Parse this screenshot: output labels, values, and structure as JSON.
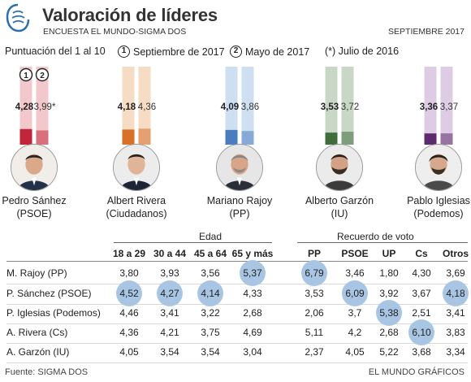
{
  "header": {
    "title": "Valoración de líderes",
    "subtitle": "ENCUESTA EL MUNDO-SIGMA DOS",
    "date": "SEPTIEMBRE 2017"
  },
  "legend": {
    "scale": "Puntuación del 1 al 10",
    "series1_num": "1",
    "series1_label": "Septiembre de 2017",
    "series2_num": "2",
    "series2_label": "Mayo de 2017",
    "note": "(*) Julio de 2016"
  },
  "chart_data": {
    "type": "bar",
    "categories": [
      "Pedro Sánhez (PSOE)",
      "Albert Rivera (Ciudadanos)",
      "Mariano Rajoy (PP)",
      "Alberto Garzón (IU)",
      "Pablo Iglesias (Podemos)"
    ],
    "series": [
      {
        "name": "Septiembre de 2017",
        "values": [
          4.28,
          4.18,
          4.09,
          3.53,
          3.36
        ]
      },
      {
        "name": "Mayo de 2017",
        "values": [
          3.99,
          4.36,
          3.86,
          3.72,
          3.37
        ]
      }
    ],
    "value_labels_s1": [
      "4,28",
      "4,18",
      "4,09",
      "3,53",
      "3,36"
    ],
    "value_labels_s2": [
      "3,99*",
      "4,36",
      "3,86",
      "3,72",
      "3,37"
    ],
    "ylim": [
      1,
      10
    ],
    "colors": [
      "#c2243a",
      "#d9702a",
      "#4a7cc0",
      "#3f6e3c",
      "#5e2a6e"
    ],
    "light_colors": [
      "#f3c8cd",
      "#f6dcc4",
      "#cfdff2",
      "#c9d8c6",
      "#ddcce4"
    ]
  },
  "leaders": [
    {
      "name": "Pedro Sánhez",
      "party": "(PSOE)"
    },
    {
      "name": "Albert Rivera",
      "party": "(Ciudadanos)"
    },
    {
      "name": "Mariano Rajoy",
      "party": "(PP)"
    },
    {
      "name": "Alberto Garzón",
      "party": "(IU)"
    },
    {
      "name": "Pablo Iglesias",
      "party": "(Podemos)"
    }
  ],
  "table": {
    "group_age": "Edad",
    "group_vote": "Recuerdo de voto",
    "age_columns": [
      "18 a 29",
      "30 a 44",
      "45 a 64",
      "65 y más"
    ],
    "vote_columns": [
      "PP",
      "PSOE",
      "UP",
      "Cs",
      "Otros"
    ],
    "rows": [
      {
        "label": "M. Rajoy (PP)",
        "age": [
          "3,80",
          "3,93",
          "3,56",
          "5,37"
        ],
        "vote": [
          "6,79",
          "3,46",
          "1,80",
          "4,30",
          "3,69"
        ]
      },
      {
        "label": "P. Sánchez (PSOE)",
        "age": [
          "4,52",
          "4,27",
          "4,14",
          "4,33"
        ],
        "vote": [
          "3,53",
          "6,09",
          "3,92",
          "3,67",
          "4,18"
        ]
      },
      {
        "label": "P. Iglesias (Podemos)",
        "age": [
          "4,46",
          "3,41",
          "3,22",
          "2,68"
        ],
        "vote": [
          "2,06",
          "3,7",
          "5,38",
          "2,51",
          "3,41"
        ]
      },
      {
        "label": "A. Rivera (Cs)",
        "age": [
          "4,36",
          "4,21",
          "3,75",
          "4,69"
        ],
        "vote": [
          "5,11",
          "4,2",
          "2,68",
          "6,10",
          "3,83"
        ]
      },
      {
        "label": "A. Garzón (IU)",
        "age": [
          "4,05",
          "3,54",
          "3,54",
          "3,04"
        ],
        "vote": [
          "2,37",
          "4,05",
          "5,22",
          "3,68",
          "3,34"
        ]
      }
    ]
  },
  "footer": {
    "source": "Fuente: SIGMA DOS",
    "credit": "EL MUNDO GRÁFICOS"
  }
}
